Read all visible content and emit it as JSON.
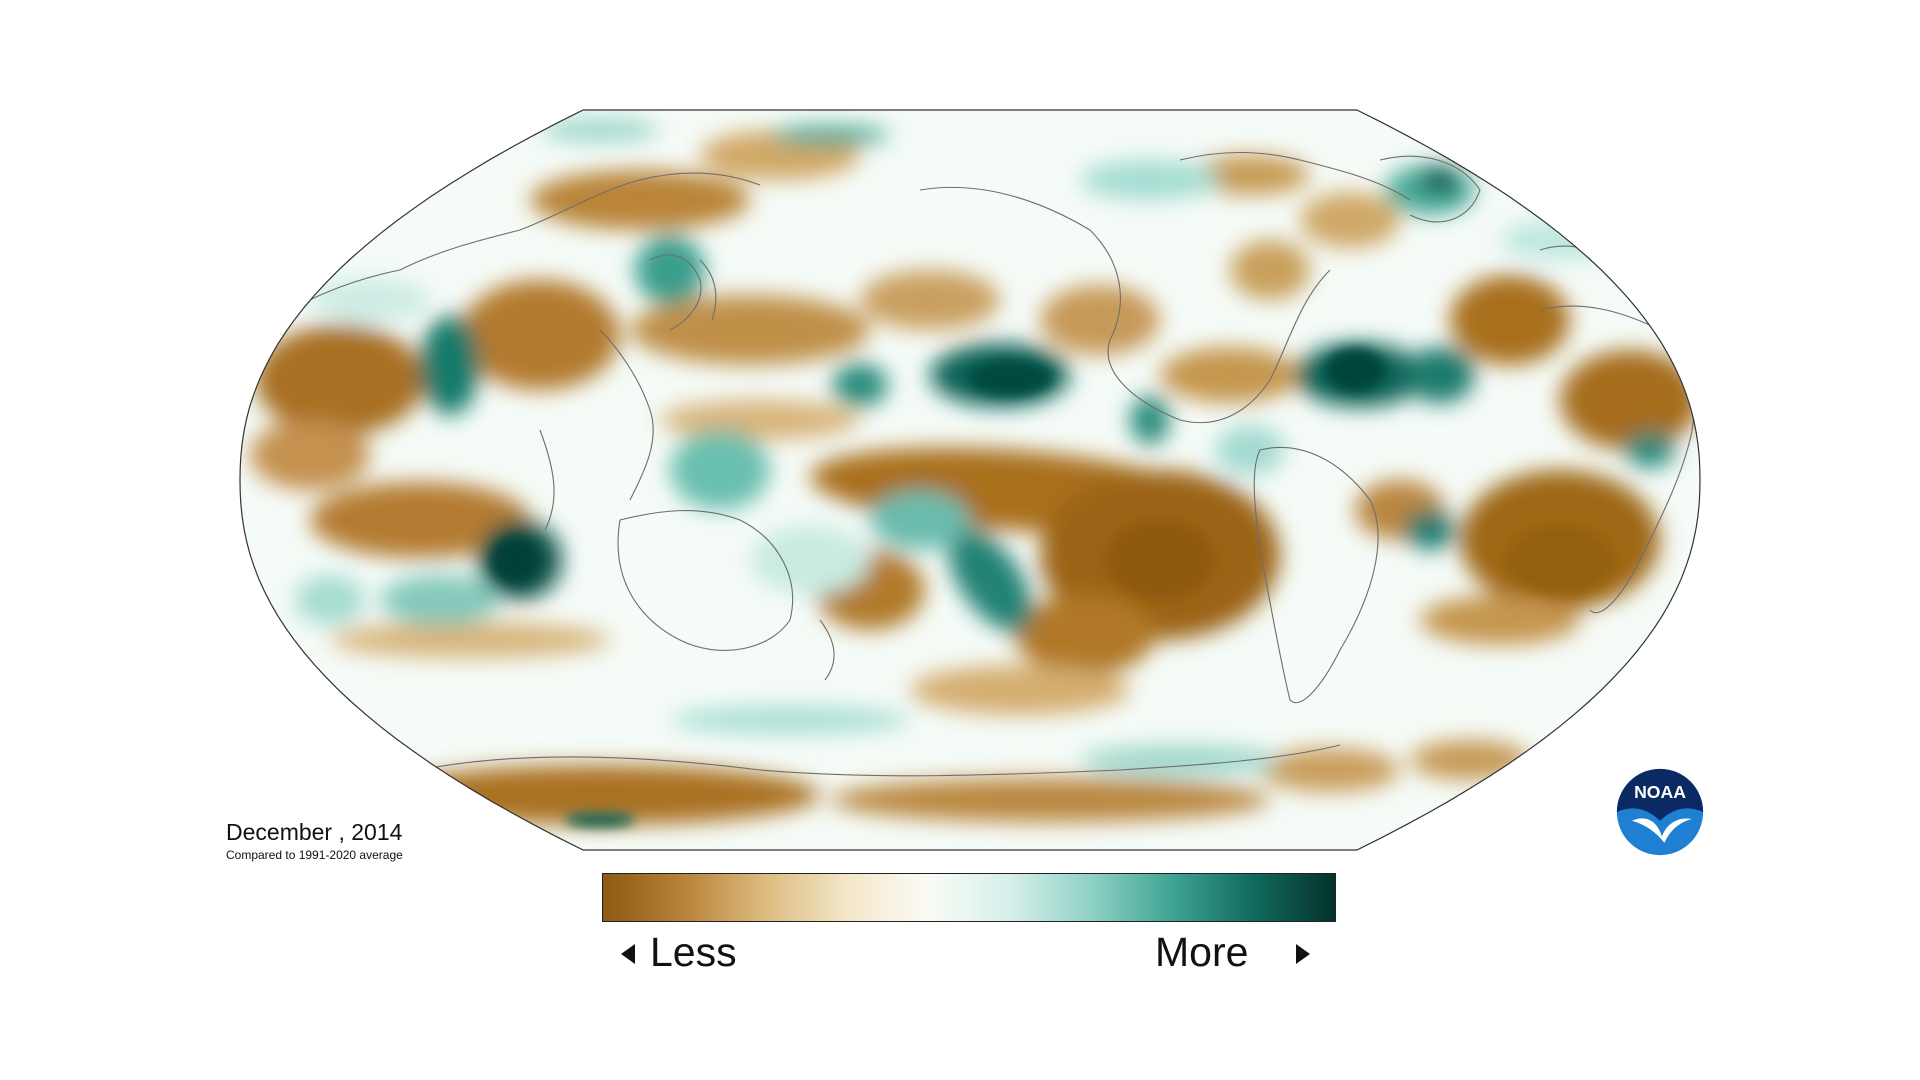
{
  "map": {
    "date_label": "December , 2014",
    "baseline_label": "Compared to 1991-2020 average",
    "projection": "robinson",
    "variable_theme": "precipitation anomaly",
    "colors": {
      "land_outline": "#6e6e6e",
      "map_border": "#333333",
      "neutral": "#f5fbf7"
    }
  },
  "legend": {
    "less_label": "Less",
    "more_label": "More",
    "less_arrow_icon": "triangle-left-icon",
    "more_arrow_icon": "triangle-right-icon",
    "color_stops": [
      "#8c5a12",
      "#b8833a",
      "#dcbc80",
      "#f3e6c8",
      "#fbfbf6",
      "#d6efea",
      "#8fd1c4",
      "#3fa393",
      "#10695c",
      "#05322c"
    ]
  },
  "logo": {
    "text": "NOAA",
    "icon": "noaa-logo-icon",
    "colors": {
      "dark": "#0b2a64",
      "light": "#1e7fd3"
    }
  }
}
